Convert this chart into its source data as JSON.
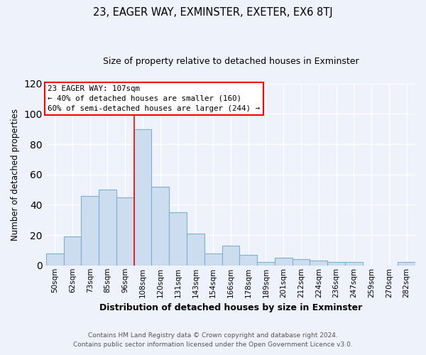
{
  "title": "23, EAGER WAY, EXMINSTER, EXETER, EX6 8TJ",
  "subtitle": "Size of property relative to detached houses in Exminster",
  "xlabel": "Distribution of detached houses by size in Exminster",
  "ylabel": "Number of detached properties",
  "bar_color": "#ccddf0",
  "bar_edge_color": "#7bafd4",
  "background_color": "#eef2fa",
  "plot_background": "#eef2fa",
  "grid_color": "#ffffff",
  "categories": [
    "50sqm",
    "62sqm",
    "73sqm",
    "85sqm",
    "96sqm",
    "108sqm",
    "120sqm",
    "131sqm",
    "143sqm",
    "154sqm",
    "166sqm",
    "178sqm",
    "189sqm",
    "201sqm",
    "212sqm",
    "224sqm",
    "236sqm",
    "247sqm",
    "259sqm",
    "270sqm",
    "282sqm"
  ],
  "values": [
    8,
    19,
    46,
    50,
    45,
    90,
    52,
    35,
    21,
    8,
    13,
    7,
    2,
    5,
    4,
    3,
    2,
    2,
    0,
    0,
    2
  ],
  "red_line_index": 5,
  "annotation_title": "23 EAGER WAY: 107sqm",
  "annotation_line1": "← 40% of detached houses are smaller (160)",
  "annotation_line2": "60% of semi-detached houses are larger (244) →",
  "ylim": [
    0,
    120
  ],
  "yticks": [
    0,
    20,
    40,
    60,
    80,
    100,
    120
  ],
  "footnote1": "Contains HM Land Registry data © Crown copyright and database right 2024.",
  "footnote2": "Contains public sector information licensed under the Open Government Licence v3.0."
}
